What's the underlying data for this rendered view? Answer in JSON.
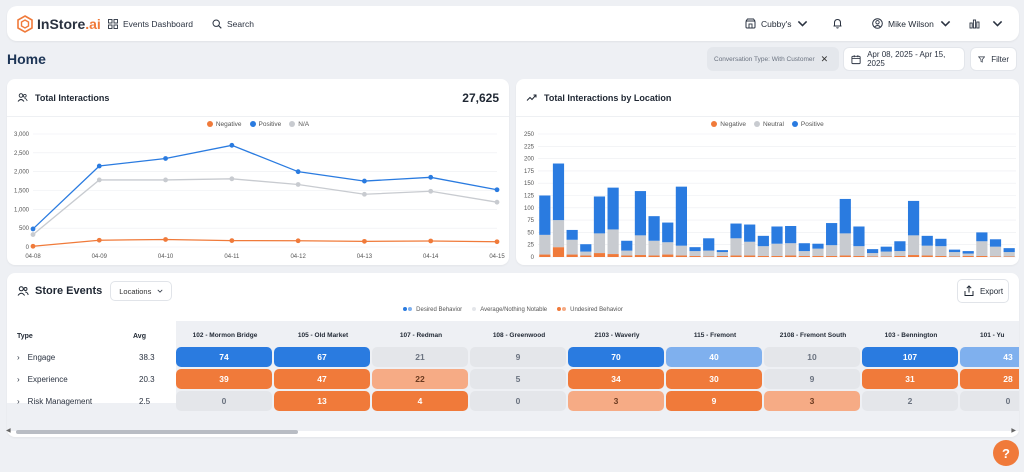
{
  "app": {
    "logo_text": "InStore",
    "logo_suffix": ".ai"
  },
  "nav": {
    "dashboard_label": "Events Dashboard",
    "search_label": "Search",
    "store_label": "Cubby's",
    "user_label": "Mike Wilson"
  },
  "page": {
    "title": "Home"
  },
  "filters": {
    "conversation_label": "Conversation Type: With Customer",
    "date_range": "Apr 08, 2025 - Apr 15, 2025",
    "filter_label": "Filter"
  },
  "total_interactions": {
    "title": "Total Interactions",
    "total": "27,625",
    "legend": [
      {
        "label": "Negative",
        "color": "#f07a3a"
      },
      {
        "label": "Positive",
        "color": "#2a7be0"
      },
      {
        "label": "N/A",
        "color": "#c8cbd0"
      }
    ]
  },
  "by_location": {
    "title": "Total Interactions by Location",
    "legend": [
      {
        "label": "Negative",
        "color": "#f07a3a"
      },
      {
        "label": "Neutral",
        "color": "#c8cbd0"
      },
      {
        "label": "Positive",
        "color": "#2a7be0"
      }
    ]
  },
  "store_events": {
    "title": "Store Events",
    "locations_label": "Locations",
    "export_label": "Export",
    "legend": [
      {
        "label": "Desired Behavior",
        "colors": [
          "#2a7be0",
          "#7fb0ee"
        ]
      },
      {
        "label": "Average/Nothing Notable",
        "colors": [
          "#e4e6ea"
        ]
      },
      {
        "label": "Undesired Behavior",
        "colors": [
          "#f07a3a",
          "#f6ab85"
        ]
      }
    ],
    "type_header": "Type",
    "avg_header": "Avg",
    "columns": [
      "102 - Mormon Bridge",
      "105 - Old Market",
      "107 - Redman",
      "108 - Greenwood",
      "2103 - Waverly",
      "115 - Fremont",
      "2108 - Fremont South",
      "103 - Bennington",
      "101 - Yu"
    ],
    "rows": [
      {
        "type": "Engage",
        "avg": "38.3",
        "values": [
          "74",
          "67",
          "21",
          "9",
          "70",
          "40",
          "10",
          "107",
          "43"
        ],
        "styles": [
          "strong-blue",
          "strong-blue",
          "neutral",
          "neutral",
          "strong-blue",
          "light-blue",
          "neutral",
          "strong-blue",
          "light-blue"
        ]
      },
      {
        "type": "Experience",
        "avg": "20.3",
        "values": [
          "39",
          "47",
          "22",
          "5",
          "34",
          "30",
          "9",
          "31",
          "28"
        ],
        "styles": [
          "strong-orange",
          "strong-orange",
          "light-orange",
          "neutral",
          "strong-orange",
          "strong-orange",
          "neutral",
          "strong-orange",
          "strong-orange"
        ]
      },
      {
        "type": "Risk Management",
        "avg": "2.5",
        "values": [
          "0",
          "13",
          "4",
          "0",
          "3",
          "9",
          "3",
          "2",
          "0"
        ],
        "styles": [
          "neutral",
          "strong-orange",
          "strong-orange",
          "neutral",
          "light-orange",
          "strong-orange",
          "light-orange",
          "neutral",
          "neutral"
        ]
      }
    ]
  },
  "chart_data": [
    {
      "type": "line",
      "title": "Total Interactions",
      "categories": [
        "04-08",
        "04-09",
        "04-10",
        "04-11",
        "04-12",
        "04-13",
        "04-14",
        "04-15"
      ],
      "ylim": [
        0,
        3000
      ],
      "y_ticks": [
        "0",
        "500",
        "1,000",
        "1,500",
        "2,000",
        "2,500",
        "3,000"
      ],
      "series": [
        {
          "name": "Negative",
          "color": "#f07a3a",
          "values": [
            20,
            180,
            200,
            170,
            165,
            150,
            160,
            140
          ]
        },
        {
          "name": "Positive",
          "color": "#2a7be0",
          "values": [
            480,
            2150,
            2350,
            2700,
            2000,
            1750,
            1850,
            1520
          ]
        },
        {
          "name": "N/A",
          "color": "#c8cbd0",
          "values": [
            330,
            1780,
            1780,
            1810,
            1660,
            1400,
            1480,
            1190
          ]
        }
      ]
    },
    {
      "type": "bar",
      "stacked": true,
      "title": "Total Interactions by Location",
      "ylim": [
        0,
        250
      ],
      "y_ticks": [
        "0",
        "25",
        "50",
        "75",
        "100",
        "125",
        "150",
        "175",
        "200",
        "225",
        "250"
      ],
      "series": [
        {
          "name": "Negative",
          "color": "#f07a3a",
          "values": [
            5,
            20,
            5,
            3,
            8,
            6,
            3,
            4,
            3,
            5,
            3,
            2,
            1,
            2,
            3,
            3,
            2,
            2,
            3,
            2,
            2,
            2,
            3,
            2,
            1,
            1,
            2,
            4,
            3,
            2,
            1,
            2,
            2,
            1,
            1
          ]
        },
        {
          "name": "Neutral",
          "color": "#c8cbd0",
          "values": [
            40,
            55,
            30,
            8,
            40,
            50,
            10,
            40,
            30,
            25,
            20,
            10,
            12,
            8,
            35,
            28,
            20,
            25,
            25,
            10,
            15,
            22,
            45,
            20,
            7,
            10,
            10,
            40,
            20,
            20,
            9,
            5,
            30,
            20,
            9
          ]
        },
        {
          "name": "Positive",
          "color": "#2a7be0",
          "values": [
            80,
            115,
            20,
            15,
            75,
            85,
            20,
            90,
            50,
            40,
            120,
            8,
            25,
            4,
            30,
            35,
            21,
            35,
            35,
            16,
            10,
            45,
            70,
            40,
            8,
            10,
            20,
            70,
            20,
            15,
            5,
            5,
            18,
            15,
            8
          ]
        }
      ]
    }
  ]
}
